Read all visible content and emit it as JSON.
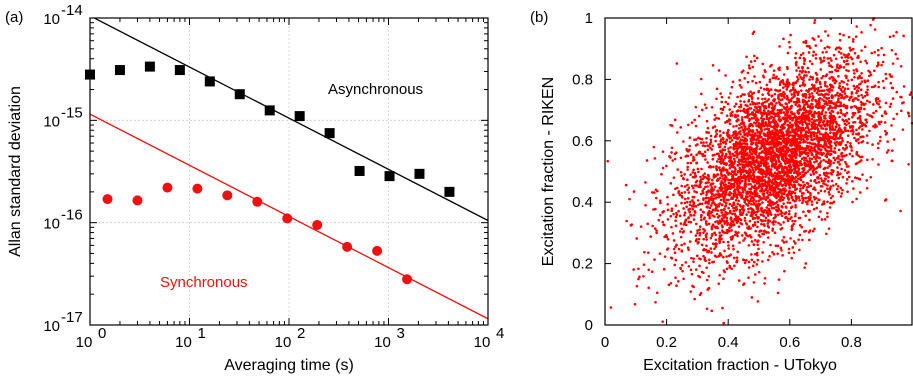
{
  "chart_data": [
    {
      "type": "scatter",
      "panel_label": "(a)",
      "xlabel": "Averaging time (s)",
      "ylabel": "Allan standard deviation",
      "xscale": "log",
      "yscale": "log",
      "xlim": [
        1,
        10000
      ],
      "ylim": [
        1e-17,
        1e-14
      ],
      "grid": true,
      "x_ticks": [
        {
          "value": 1,
          "base": "10",
          "exp": "0"
        },
        {
          "value": 10,
          "base": "10",
          "exp": "1"
        },
        {
          "value": 100,
          "base": "10",
          "exp": "2"
        },
        {
          "value": 1000,
          "base": "10",
          "exp": "3"
        },
        {
          "value": 10000,
          "base": "10",
          "exp": "4"
        }
      ],
      "y_ticks": [
        {
          "value": 1e-17,
          "base": "10",
          "exp": "-17"
        },
        {
          "value": 1e-16,
          "base": "10",
          "exp": "-16"
        },
        {
          "value": 1e-15,
          "base": "10",
          "exp": "-15"
        },
        {
          "value": 1e-14,
          "base": "10",
          "exp": "-14"
        }
      ],
      "series": [
        {
          "name": "Asynchronous",
          "color": "#000000",
          "marker": "square",
          "x": [
            1,
            2,
            4,
            8,
            16,
            32,
            64,
            128,
            256,
            512,
            1024,
            2048,
            4096
          ],
          "y": [
            2.8e-15,
            3.1e-15,
            3.35e-15,
            3.1e-15,
            2.4e-15,
            1.8e-15,
            1.25e-15,
            1.1e-15,
            7.5e-16,
            3.2e-16,
            2.85e-16,
            3e-16,
            2e-16
          ],
          "fit_line": {
            "x": [
              1,
              10000
            ],
            "y": [
              1.05e-14,
              1.05e-16
            ]
          }
        },
        {
          "name": "Synchronous",
          "color": "#ee1111",
          "marker": "circle",
          "x": [
            1.5,
            3,
            6,
            12,
            24,
            48,
            96,
            192,
            384,
            768,
            1536
          ],
          "y": [
            1.7e-16,
            1.65e-16,
            2.2e-16,
            2.15e-16,
            1.85e-16,
            1.6e-16,
            1.1e-16,
            9.5e-17,
            5.8e-17,
            5.3e-17,
            2.8e-17
          ],
          "fit_line": {
            "x": [
              1,
              10000
            ],
            "y": [
              1.15e-15,
              1.15e-17
            ]
          }
        }
      ]
    },
    {
      "type": "scatter",
      "panel_label": "(b)",
      "xlabel": "Excitation fraction - UTokyo",
      "ylabel": "Excitation fraction - RIKEN",
      "xlim": [
        0,
        1
      ],
      "ylim": [
        0,
        1
      ],
      "x_ticks": [
        "0",
        "0.2",
        "0.4",
        "0.6",
        "0.8"
      ],
      "x_tick_values": [
        0,
        0.2,
        0.4,
        0.6,
        0.8
      ],
      "y_ticks": [
        "0",
        "0.2",
        "0.4",
        "0.6",
        "0.8",
        "1"
      ],
      "y_tick_values": [
        0,
        0.2,
        0.4,
        0.6,
        0.8,
        1
      ],
      "grid": false,
      "series": [
        {
          "color": "#ff0000",
          "marker": "dot",
          "distribution": {
            "count": 4500,
            "x_mean": 0.55,
            "x_sd": 0.16,
            "y_mean": 0.55,
            "y_sd": 0.16,
            "correlation": 0.55
          }
        }
      ]
    }
  ]
}
